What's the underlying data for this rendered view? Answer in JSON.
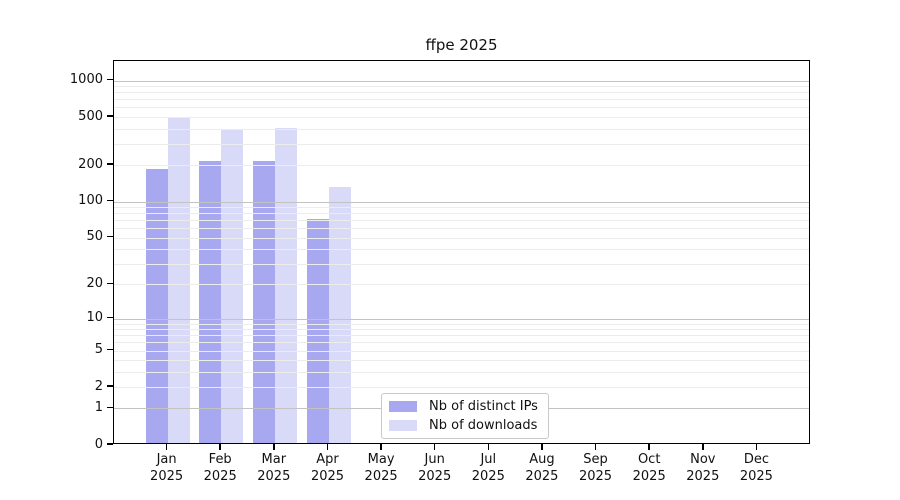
{
  "chart_data": {
    "type": "bar",
    "title": "ffpe 2025",
    "year": "2025",
    "categories": [
      "Jan",
      "Feb",
      "Mar",
      "Apr",
      "May",
      "Jun",
      "Jul",
      "Aug",
      "Sep",
      "Oct",
      "Nov",
      "Dec"
    ],
    "series": [
      {
        "name": "Nb of distinct IPs",
        "color": "#a8a8f0",
        "values": [
          178,
          208,
          209,
          69,
          0,
          0,
          0,
          0,
          0,
          0,
          0,
          0
        ]
      },
      {
        "name": "Nb of downloads",
        "color": "#d9d9f8",
        "values": [
          470,
          382,
          389,
          127,
          0,
          0,
          0,
          0,
          0,
          0,
          0,
          0
        ]
      }
    ],
    "y_axis": {
      "scale": "log1p",
      "ticks": [
        0,
        1,
        2,
        5,
        10,
        20,
        50,
        100,
        200,
        500,
        1000
      ],
      "max": 1450
    },
    "grid": {
      "major": [
        1,
        10,
        100,
        1000
      ],
      "minor": [
        2,
        3,
        4,
        5,
        6,
        7,
        8,
        9,
        20,
        30,
        40,
        50,
        60,
        70,
        80,
        90,
        200,
        300,
        400,
        500,
        600,
        700,
        800,
        900
      ],
      "grid_above_bars": true
    },
    "legend": {
      "position": "inside-bottom-center"
    },
    "colors": {
      "spine": "#000000",
      "grid_major": "#c3c3c3",
      "grid_minor": "#ececec",
      "background": "#ffffff"
    }
  }
}
